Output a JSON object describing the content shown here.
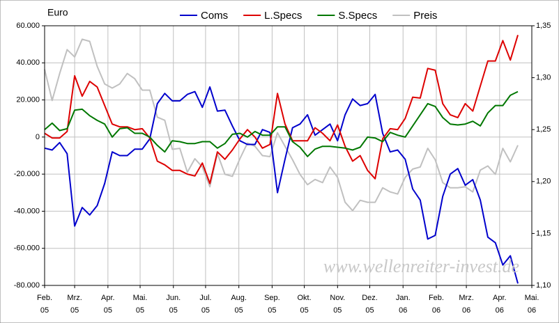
{
  "chart_data": {
    "type": "line",
    "y_label": "Euro",
    "annotation": "www.wellenreiter-invest.de",
    "x": [
      0,
      7,
      14,
      21,
      28,
      35,
      42,
      49,
      56,
      63,
      70,
      77,
      84,
      91,
      98,
      105,
      112,
      119,
      126,
      133,
      140,
      147,
      154,
      161,
      168,
      175,
      182,
      189,
      196,
      203,
      210,
      217,
      224,
      231,
      238,
      245,
      252,
      259,
      266,
      273,
      280,
      287,
      294,
      301,
      308,
      315,
      322,
      329,
      336,
      343,
      350,
      357,
      364,
      371,
      378,
      385,
      392,
      399,
      406,
      413,
      420,
      427,
      434,
      441
    ],
    "xlim": [
      0,
      454
    ],
    "xticks": [
      {
        "value": 0,
        "label": "Feb.\n05"
      },
      {
        "value": 28,
        "label": "Mrz.\n05"
      },
      {
        "value": 59,
        "label": "Apr.\n05"
      },
      {
        "value": 89,
        "label": "Mai.\n05"
      },
      {
        "value": 120,
        "label": "Jun.\n05"
      },
      {
        "value": 150,
        "label": "Jul.\n05"
      },
      {
        "value": 181,
        "label": "Aug.\n05"
      },
      {
        "value": 212,
        "label": "Sep.\n05"
      },
      {
        "value": 242,
        "label": "Okt.\n05"
      },
      {
        "value": 273,
        "label": "Nov.\n05"
      },
      {
        "value": 303,
        "label": "Dez.\n05"
      },
      {
        "value": 334,
        "label": "Jan.\n06"
      },
      {
        "value": 365,
        "label": "Feb.\n06"
      },
      {
        "value": 393,
        "label": "Mrz.\n06"
      },
      {
        "value": 424,
        "label": "Apr.\n06"
      },
      {
        "value": 454,
        "label": "Mai.\n06"
      }
    ],
    "ylim": [
      -80000,
      60000
    ],
    "yticks": [
      {
        "value": -80000,
        "label": "-80.000"
      },
      {
        "value": -60000,
        "label": "-60.000"
      },
      {
        "value": -40000,
        "label": "-40.000"
      },
      {
        "value": -20000,
        "label": "-20.000"
      },
      0,
      {
        "value": 20000,
        "label": "20.000"
      },
      {
        "value": 40000,
        "label": "40.000"
      },
      {
        "value": 60000,
        "label": "60.000"
      }
    ],
    "y2lim": [
      1.1,
      1.35
    ],
    "y2ticks": [
      {
        "value": 1.1,
        "label": "1,10"
      },
      {
        "value": 1.15,
        "label": "1,15"
      },
      {
        "value": 1.2,
        "label": "1,20"
      },
      {
        "value": 1.25,
        "label": "1,25"
      },
      {
        "value": 1.3,
        "label": "1,30"
      },
      {
        "value": 1.35,
        "label": "1,35"
      }
    ],
    "grid": true,
    "legend": "top",
    "series": [
      {
        "name": "Coms",
        "color": "#0000cc",
        "values": [
          -6000,
          -7000,
          -3000,
          -9000,
          -48000,
          -38000,
          -42000,
          -37000,
          -25000,
          -8000,
          -10000,
          -10000,
          -6500,
          -6500,
          -1000,
          18000,
          23500,
          19500,
          19500,
          23000,
          24500,
          16000,
          27000,
          14000,
          14500,
          6000,
          -2000,
          -4000,
          -4000,
          4000,
          2500,
          -30000,
          -12000,
          5000,
          7000,
          12000,
          1000,
          4000,
          7000,
          -2000,
          12000,
          20500,
          17000,
          18000,
          23000,
          2000,
          -8000,
          -7000,
          -12000,
          -28000,
          -34000,
          -55000,
          -53000,
          -32000,
          -20000,
          -17000,
          -26000,
          -23000,
          -34000,
          -54000,
          -57000,
          -69000,
          -64000,
          -79000
        ]
      },
      {
        "name": "L.Specs",
        "color": "#dd0000",
        "values": [
          2000,
          -500,
          -500,
          3000,
          33000,
          22000,
          30000,
          27000,
          17000,
          7000,
          5500,
          5500,
          4000,
          4500,
          -500,
          -13000,
          -15000,
          -18000,
          -18000,
          -20000,
          -21000,
          -14000,
          -25000,
          -8000,
          -12000,
          -7000,
          -1000,
          4000,
          0,
          -6000,
          -4000,
          23500,
          7000,
          -2000,
          -2000,
          -2000,
          5000,
          2000,
          -2000,
          6500,
          -5000,
          -13000,
          -10000,
          -18000,
          -22500,
          -1000,
          4500,
          4000,
          10000,
          21500,
          21000,
          37000,
          36000,
          18000,
          12000,
          10500,
          18000,
          14000,
          27500,
          41000,
          41000,
          52000,
          41500,
          55000
        ]
      },
      {
        "name": "S.Specs",
        "color": "#007700",
        "values": [
          4000,
          7500,
          3500,
          4500,
          14500,
          15000,
          11500,
          9000,
          7000,
          0,
          4500,
          5000,
          2000,
          2000,
          0,
          -4500,
          -8000,
          -2000,
          -2500,
          -3500,
          -3500,
          -2500,
          -2500,
          -6000,
          -3500,
          1500,
          2000,
          0,
          3000,
          1000,
          1000,
          5500,
          5500,
          -2500,
          -5500,
          -10500,
          -6500,
          -5000,
          -5000,
          -5500,
          -6000,
          -7000,
          -5500,
          0,
          -500,
          -2500,
          2500,
          1000,
          0,
          6000,
          12000,
          18000,
          16500,
          10500,
          7000,
          6500,
          7000,
          8500,
          6000,
          13000,
          17000,
          17000,
          22500,
          24500
        ]
      },
      {
        "name": "Preis",
        "color": "#c0c0c0",
        "axis": "y2",
        "values": [
          1.308,
          1.278,
          1.304,
          1.327,
          1.32,
          1.337,
          1.335,
          1.311,
          1.294,
          1.29,
          1.294,
          1.304,
          1.299,
          1.288,
          1.288,
          1.262,
          1.259,
          1.231,
          1.232,
          1.209,
          1.222,
          1.214,
          1.195,
          1.227,
          1.207,
          1.205,
          1.222,
          1.237,
          1.234,
          1.225,
          1.224,
          1.247,
          1.234,
          1.221,
          1.207,
          1.197,
          1.202,
          1.199,
          1.214,
          1.204,
          1.18,
          1.172,
          1.182,
          1.18,
          1.18,
          1.194,
          1.19,
          1.188,
          1.204,
          1.212,
          1.214,
          1.232,
          1.221,
          1.199,
          1.194,
          1.194,
          1.195,
          1.19,
          1.211,
          1.215,
          1.207,
          1.232,
          1.219,
          1.235
        ]
      }
    ]
  }
}
